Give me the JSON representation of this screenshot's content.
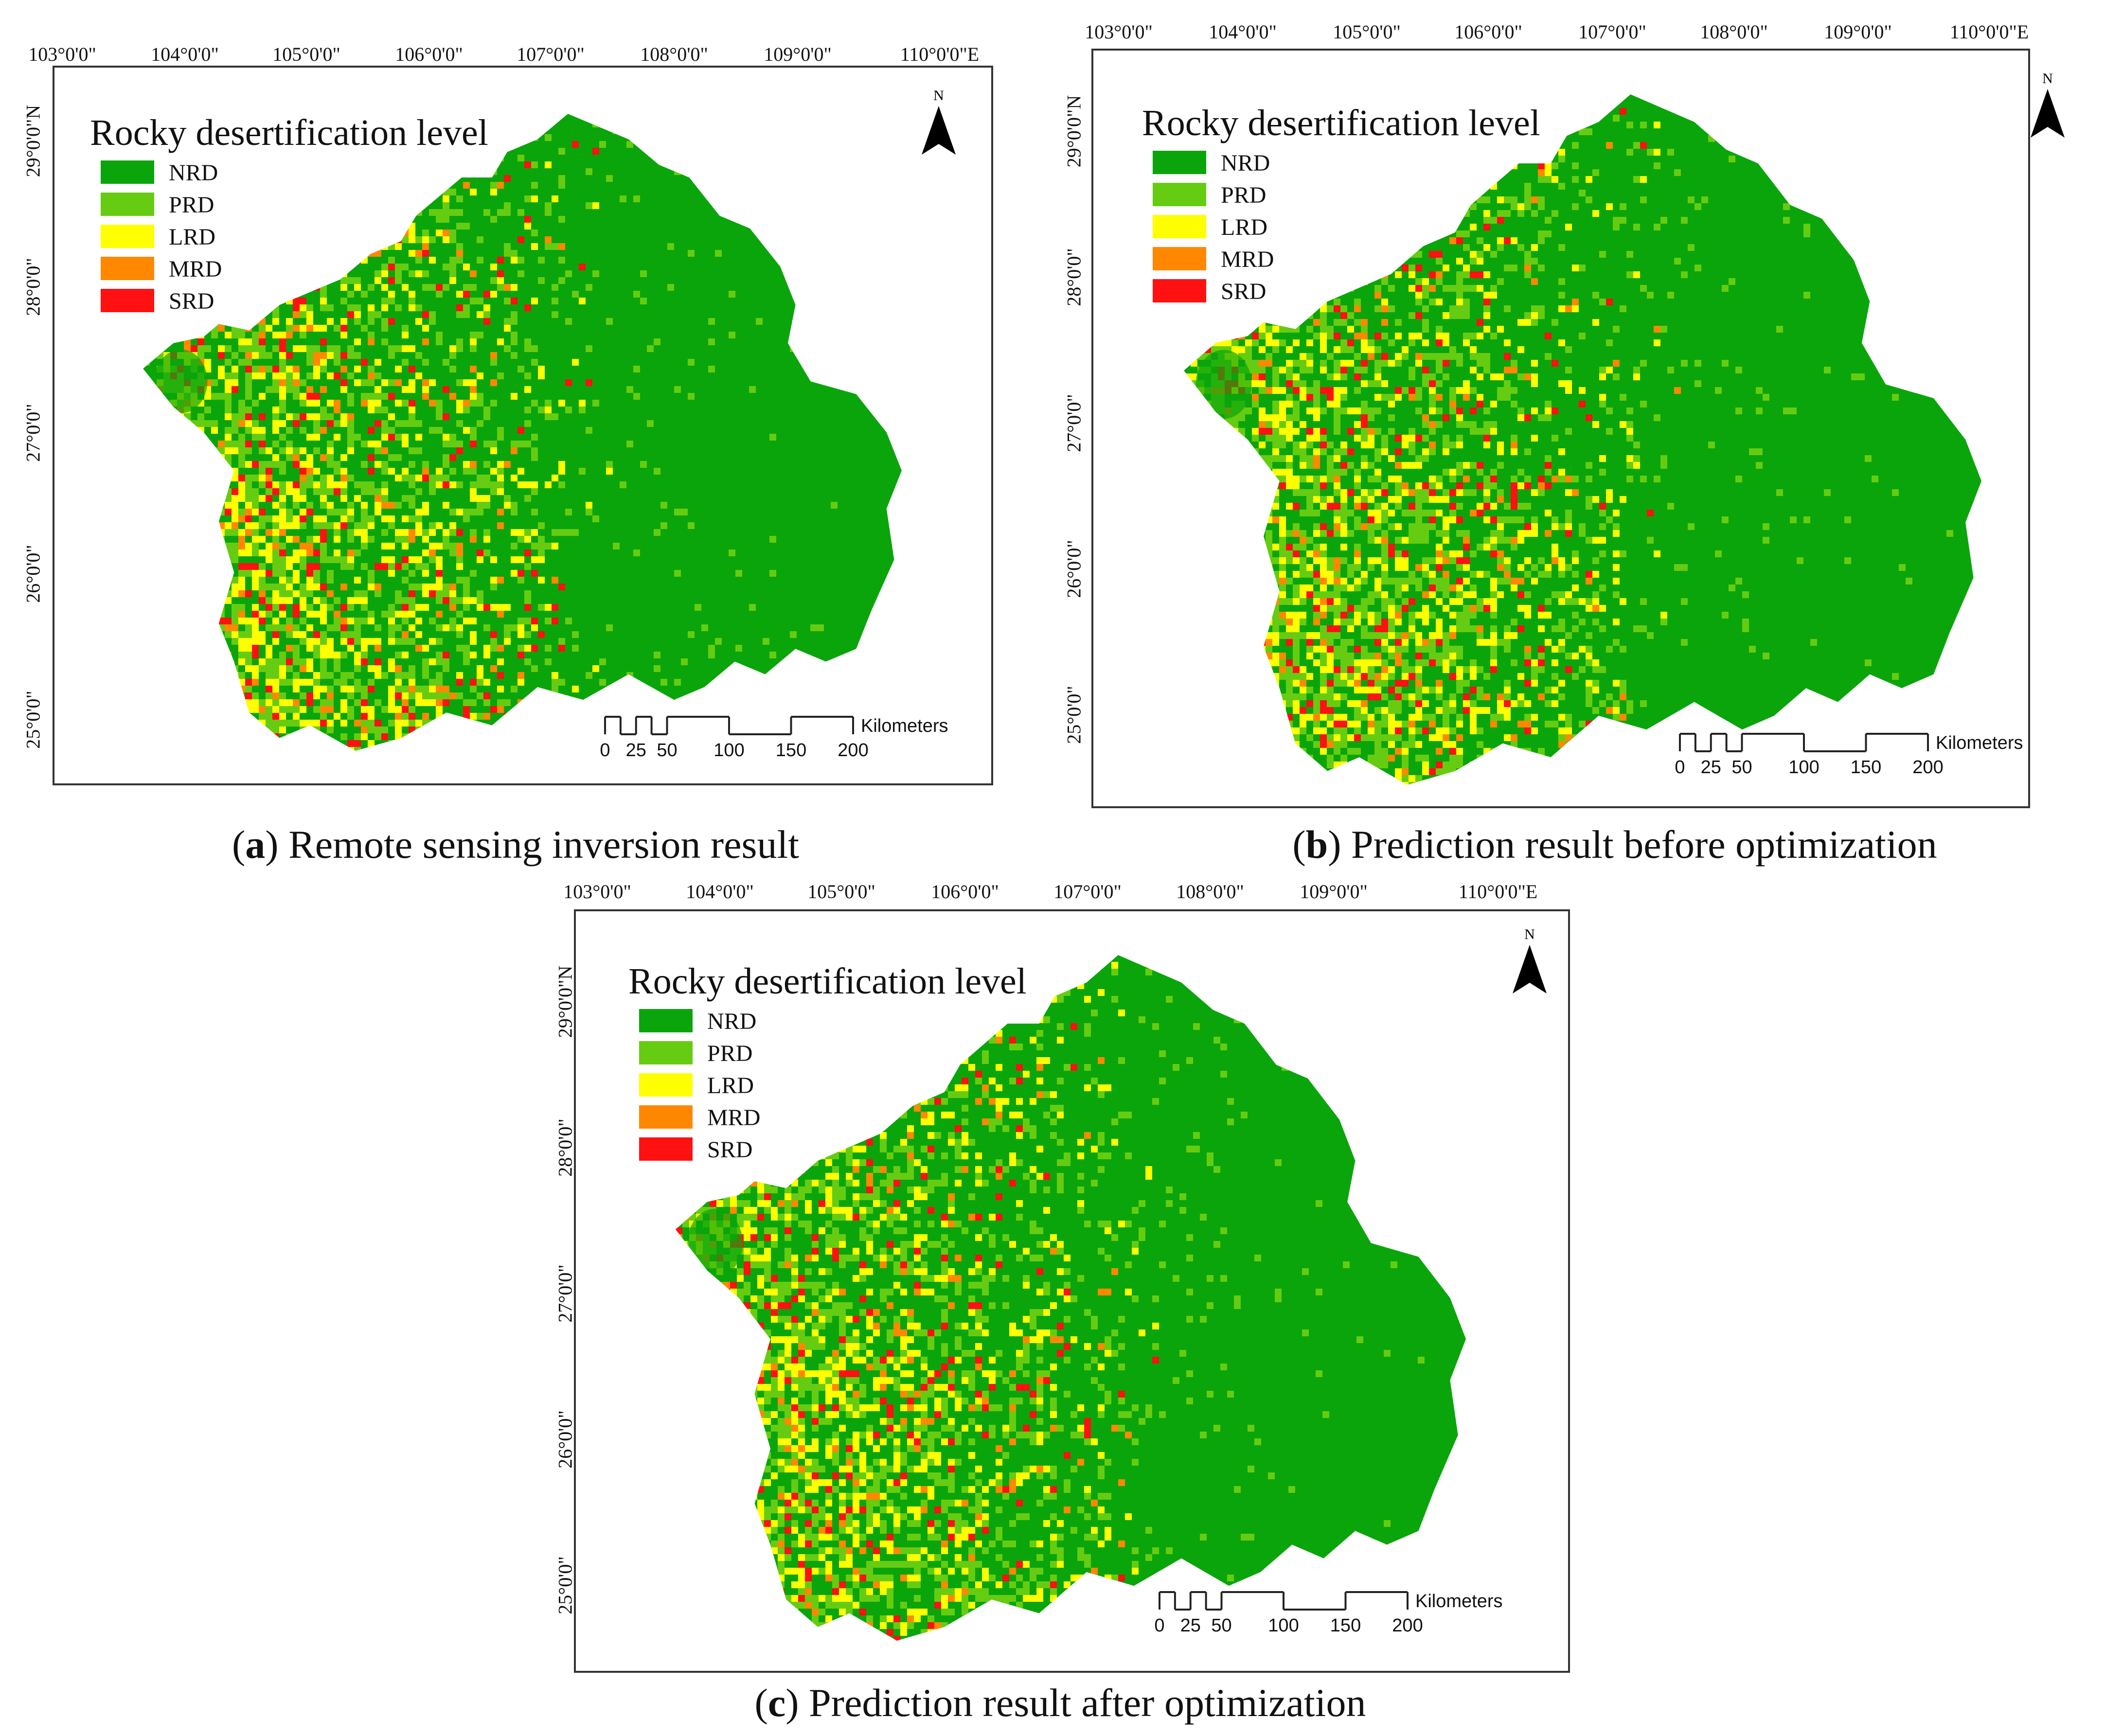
{
  "colors": {
    "NRD": "#0aa50a",
    "PRD": "#66cc11",
    "LRD": "#ffff00",
    "MRD": "#ff8800",
    "SRD": "#ff1111"
  },
  "legend": {
    "title": "Rocky desertification level",
    "items": [
      {
        "code": "NRD",
        "label": "NRD"
      },
      {
        "code": "PRD",
        "label": "PRD"
      },
      {
        "code": "LRD",
        "label": "LRD"
      },
      {
        "code": "MRD",
        "label": "MRD"
      },
      {
        "code": "SRD",
        "label": "SRD"
      }
    ]
  },
  "longitude_labels": [
    "103°0'0\"",
    "104°0'0\"",
    "105°0'0\"",
    "106°0'0\"",
    "107°0'0\"",
    "108°0'0\"",
    "109°0'0\"",
    "110°0'0\"E"
  ],
  "latitude_labels": [
    "29°0'0\"N",
    "28°0'0\"",
    "27°0'0\"",
    "26°0'0\"",
    "25°0'0\""
  ],
  "north_arrow": {
    "letter": "N",
    "icon": "north-arrow-icon"
  },
  "scale_bar": {
    "unit": "Kilometers",
    "ticks": [
      "0",
      "25",
      "50",
      "100",
      "150",
      "200"
    ]
  },
  "panels": [
    {
      "id": "a",
      "letter": "a",
      "caption": "Remote sensing inversion result",
      "variant": 0
    },
    {
      "id": "b",
      "letter": "b",
      "caption": "Prediction result before optimization",
      "variant": 1
    },
    {
      "id": "c",
      "letter": "c",
      "caption": "Prediction result after optimization",
      "variant": 2
    }
  ]
}
